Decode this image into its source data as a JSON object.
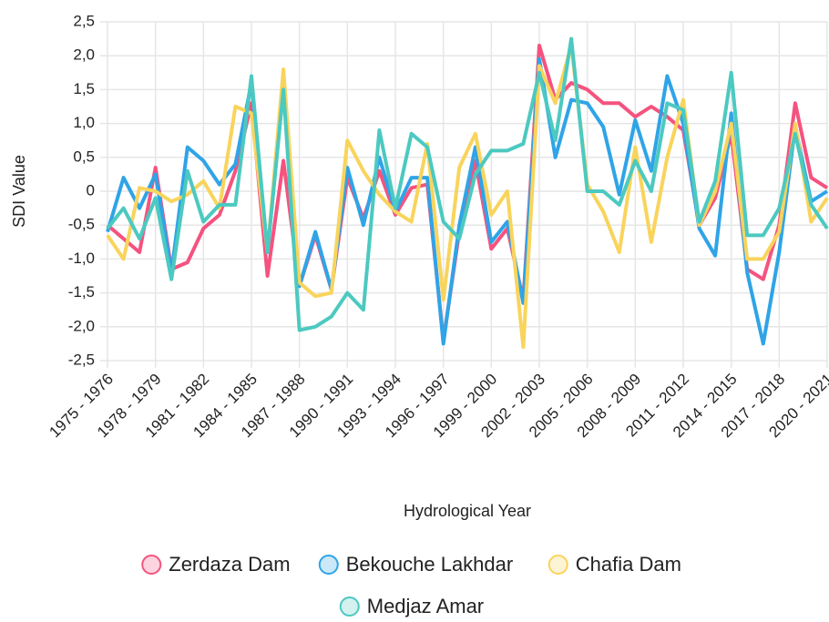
{
  "chart_data": {
    "type": "line",
    "x_label": "Hydrological Year",
    "y_label": "SDI Value",
    "categories": [
      "1975 - 1976",
      null,
      null,
      "1978 - 1979",
      null,
      null,
      "1981 - 1982",
      null,
      null,
      "1984 - 1985",
      null,
      null,
      "1987 - 1988",
      null,
      null,
      "1990 - 1991",
      null,
      null,
      "1993 - 1994",
      null,
      null,
      "1996 - 1997",
      null,
      null,
      "1999 - 2000",
      null,
      null,
      "2002 - 2003",
      null,
      null,
      "2005 - 2006",
      null,
      null,
      "2008 - 2009",
      null,
      null,
      "2011 - 2012",
      null,
      null,
      "2014 - 2015",
      null,
      null,
      "2017 - 2018",
      null,
      null,
      "2020 - 2021"
    ],
    "series": [
      {
        "name": "Zerdaza Dam",
        "color": "#f5537f",
        "values": [
          -0.5,
          -0.7,
          -0.9,
          0.35,
          -1.15,
          -1.05,
          -0.55,
          -0.35,
          0.3,
          1.3,
          -1.25,
          0.45,
          -1.4,
          -0.65,
          -1.45,
          0.2,
          -0.4,
          0.3,
          -0.35,
          0.05,
          0.1,
          -2.2,
          -0.6,
          0.45,
          -0.85,
          -0.55,
          -1.6,
          2.15,
          1.35,
          1.6,
          1.5,
          1.3,
          1.3,
          1.1,
          1.25,
          1.1,
          0.9,
          -0.5,
          -0.1,
          0.85,
          -1.15,
          -1.3,
          -0.5,
          1.3,
          0.2,
          0.05
        ]
      },
      {
        "name": "Bekouche Lakhdar",
        "color": "#2fa4e7",
        "values": [
          -0.6,
          0.2,
          -0.25,
          0.25,
          -1.2,
          0.65,
          0.45,
          0.1,
          0.4,
          1.6,
          -0.9,
          1.55,
          -1.4,
          -0.6,
          -1.45,
          0.35,
          -0.5,
          0.5,
          -0.3,
          0.2,
          0.2,
          -2.25,
          -0.5,
          0.65,
          -0.75,
          -0.45,
          -1.65,
          1.95,
          0.5,
          1.35,
          1.3,
          0.95,
          -0.05,
          1.05,
          0.3,
          1.7,
          1.0,
          -0.55,
          -0.95,
          1.15,
          -1.2,
          -2.25,
          -0.9,
          0.95,
          -0.15,
          0.0
        ]
      },
      {
        "name": "Chafia Dam",
        "color": "#f9d45c",
        "values": [
          -0.65,
          -1.0,
          0.05,
          0.0,
          -0.15,
          -0.05,
          0.15,
          -0.25,
          1.25,
          1.15,
          -0.9,
          1.8,
          -1.35,
          -1.55,
          -1.5,
          0.75,
          0.3,
          -0.05,
          -0.3,
          -0.45,
          0.7,
          -1.6,
          0.35,
          0.85,
          -0.35,
          0.0,
          -2.3,
          1.85,
          1.3,
          2.15,
          0.1,
          -0.3,
          -0.9,
          0.65,
          -0.75,
          0.5,
          1.35,
          -0.5,
          0.0,
          1.0,
          -1.0,
          -1.0,
          -0.6,
          1.0,
          -0.45,
          -0.1
        ]
      },
      {
        "name": "Medjaz Amar",
        "color": "#4cc9c0",
        "values": [
          -0.55,
          -0.25,
          -0.7,
          -0.1,
          -1.3,
          0.3,
          -0.45,
          -0.2,
          -0.2,
          1.7,
          -0.9,
          1.5,
          -2.05,
          -2.0,
          -1.85,
          -1.5,
          -1.75,
          0.9,
          -0.25,
          0.85,
          0.65,
          -0.45,
          -0.7,
          0.25,
          0.6,
          0.6,
          0.7,
          1.75,
          0.75,
          2.25,
          0.0,
          0.0,
          -0.2,
          0.45,
          0.0,
          1.3,
          1.2,
          -0.45,
          0.15,
          1.75,
          -0.65,
          -0.65,
          -0.25,
          0.85,
          -0.2,
          -0.55
        ]
      }
    ],
    "ylim": [
      -2.5,
      2.5
    ],
    "yticks": [
      {
        "value": -2.5,
        "label": "-2,5"
      },
      {
        "value": -2,
        "label": "-2,0"
      },
      {
        "value": -1.5,
        "label": "-1,5"
      },
      {
        "value": -1,
        "label": "-1,0"
      },
      {
        "value": -0.5,
        "label": "-0,5"
      },
      0,
      {
        "value": 0.5,
        "label": "0,5"
      },
      {
        "value": 1,
        "label": "1,0"
      },
      {
        "value": 1.5,
        "label": "1,5"
      },
      {
        "value": 2,
        "label": "2,0"
      },
      {
        "value": 2.5,
        "label": "2,5"
      }
    ],
    "grid": true
  }
}
